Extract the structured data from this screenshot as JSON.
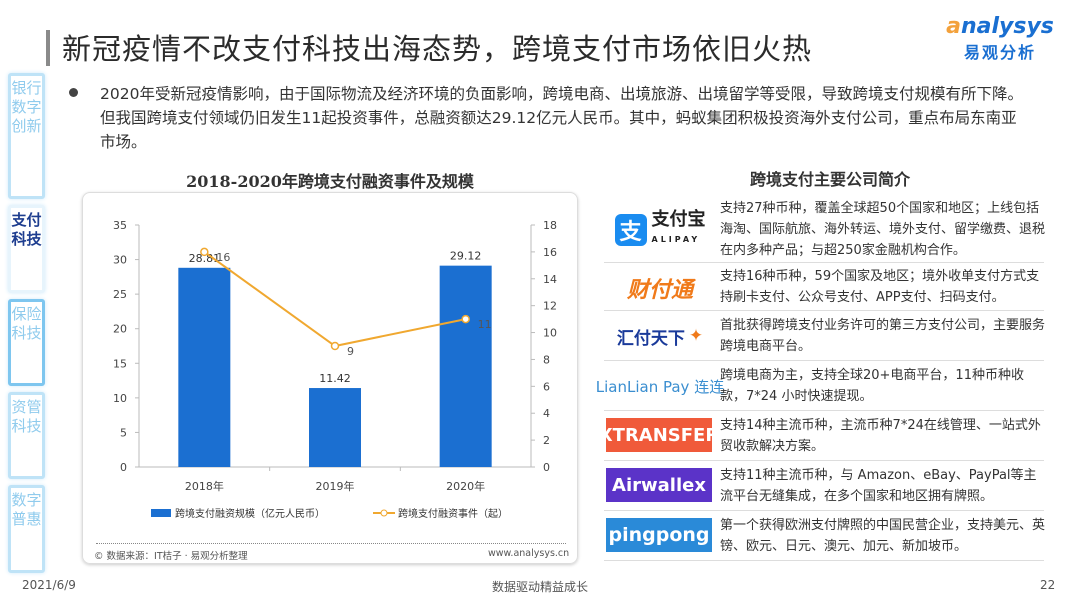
{
  "header": {
    "title": "新冠疫情不改支付科技出海态势，跨境支付市场依旧火热",
    "logo_en": "nalysys",
    "logo_en_a": "a",
    "logo_cn": "易观分析"
  },
  "sidebar": {
    "items": [
      {
        "label": "银行数字创新"
      },
      {
        "label": "支付科技"
      },
      {
        "label": "保险科技"
      },
      {
        "label": "资管科技"
      },
      {
        "label": "数字普惠"
      }
    ]
  },
  "bullet": "2020年受新冠疫情影响，由于国际物流及经济环境的负面影响，跨境电商、出境旅游、出境留学等受限，导致跨境支付规模有所下降。但我国跨境支付领域仍旧发生11起投资事件，总融资额达29.12亿元人民币。其中，蚂蚁集团积极投资海外支付公司，重点布局东南亚市场。",
  "chart_data": {
    "type": "bar+line",
    "title": "2018-2020年跨境支付融资事件及规模",
    "categories": [
      "2018年",
      "2019年",
      "2020年"
    ],
    "series": [
      {
        "name": "跨境支付融资规模（亿元人民币）",
        "type": "bar",
        "axis": "left",
        "values": [
          28.81,
          11.42,
          29.12
        ],
        "color": "#1b6fd1"
      },
      {
        "name": "跨境支付融资事件（起）",
        "type": "line",
        "axis": "right",
        "values": [
          16,
          9,
          11
        ],
        "color": "#f0a830"
      }
    ],
    "y_left": {
      "range": [
        0,
        35
      ],
      "ticks": [
        "0",
        "5",
        "10",
        "15",
        "20",
        "25",
        "30",
        "35"
      ]
    },
    "y_right": {
      "range": [
        0,
        18
      ],
      "ticks": [
        "0",
        "2",
        "4",
        "6",
        "8",
        "10",
        "12",
        "14",
        "16",
        "18"
      ]
    },
    "legend": "bottom",
    "source": "© 数据来源：IT桔子 · 易观分析整理",
    "site": "www.analysys.cn"
  },
  "companies": {
    "title": "跨境支付主要公司简介",
    "rows": [
      {
        "logo": "支付宝 ALIPAY",
        "text": "支持27种币种，覆盖全球超50个国家和地区；上线包括海淘、国际航旅、海外转运、境外支付、留学缴费、退税在内多种产品；与超250家金融机构合作。"
      },
      {
        "logo": "财付通",
        "text": "支持16种币种，59个国家及地区；境外收单支付方式支持刷卡支付、公众号支付、APP支付、扫码支付。"
      },
      {
        "logo": "汇付天下",
        "text": "首批获得跨境支付业务许可的第三方支付公司，主要服务跨境电商平台。"
      },
      {
        "logo": "LianLian Pay 连连",
        "text": "跨境电商为主，支持全球20+电商平台，11种币种收款，7*24 小时快速提现。"
      },
      {
        "logo": "XTRANSFER",
        "text": "支持14种主流币种，主流币种7*24在线管理、一站式外贸收款解决方案。"
      },
      {
        "logo": "Airwallex",
        "text": "支持11种主流币种，与 Amazon、eBay、PayPal等主流平台无缝集成，在多个国家和地区拥有牌照。"
      },
      {
        "logo": "pingpong",
        "text": "第一个获得欧洲支付牌照的中国民营企业，支持美元、英镑、欧元、日元、澳元、加元、新加坡币。"
      }
    ]
  },
  "footer": {
    "date": "2021/6/9",
    "tagline": "数据驱动精益成长",
    "page": "22"
  }
}
